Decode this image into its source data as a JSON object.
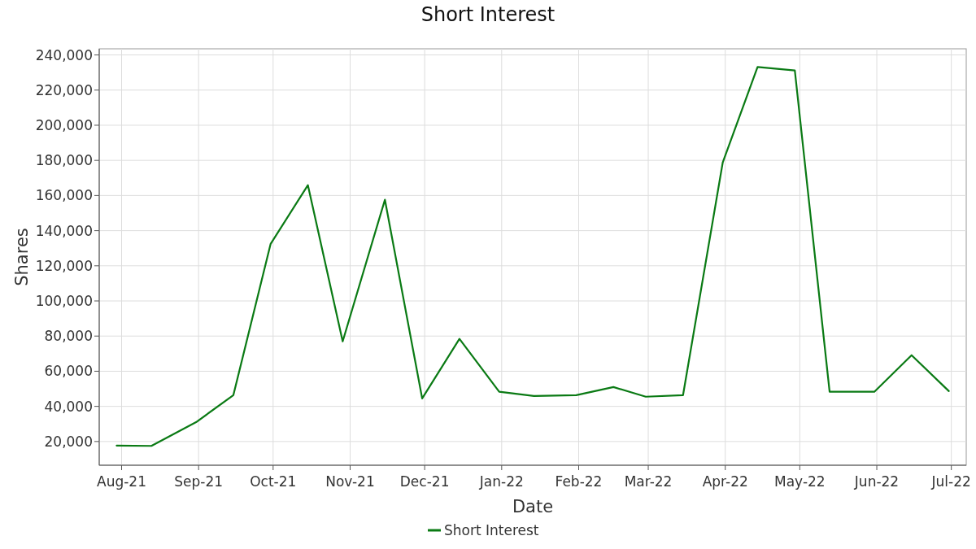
{
  "chart_data": {
    "type": "line",
    "title": "Short Interest",
    "xlabel": "Date",
    "ylabel": "Shares",
    "x": [
      "2021-07-30",
      "2021-08-13",
      "2021-08-31",
      "2021-09-15",
      "2021-09-30",
      "2021-10-15",
      "2021-10-29",
      "2021-11-15",
      "2021-11-30",
      "2021-12-15",
      "2021-12-31",
      "2022-01-14",
      "2022-01-31",
      "2022-02-15",
      "2022-02-28",
      "2022-03-15",
      "2022-03-31",
      "2022-04-14",
      "2022-04-29",
      "2022-05-13",
      "2022-05-31",
      "2022-06-15",
      "2022-06-30"
    ],
    "series": [
      {
        "name": "Short Interest",
        "color": "#0a7a14",
        "values": [
          17700,
          17500,
          31000,
          46400,
          132500,
          165900,
          77000,
          157600,
          44500,
          78400,
          48300,
          45900,
          46400,
          51000,
          45500,
          46400,
          178900,
          233100,
          231200,
          48300,
          48300,
          69100,
          48700
        ]
      }
    ],
    "xlim": [
      "2021-07-23",
      "2022-07-07"
    ],
    "xticks": [
      {
        "value": "2021-08-01",
        "label": "Aug-21"
      },
      {
        "value": "2021-09-01",
        "label": "Sep-21"
      },
      {
        "value": "2021-10-01",
        "label": "Oct-21"
      },
      {
        "value": "2021-11-01",
        "label": "Nov-21"
      },
      {
        "value": "2021-12-01",
        "label": "Dec-21"
      },
      {
        "value": "2022-01-01",
        "label": "Jan-22"
      },
      {
        "value": "2022-02-01",
        "label": "Feb-22"
      },
      {
        "value": "2022-03-01",
        "label": "Mar-22"
      },
      {
        "value": "2022-04-01",
        "label": "Apr-22"
      },
      {
        "value": "2022-05-01",
        "label": "May-22"
      },
      {
        "value": "2022-06-01",
        "label": "Jun-22"
      },
      {
        "value": "2022-07-01",
        "label": "Jul-22"
      }
    ],
    "ylim": [
      6500,
      243500
    ],
    "yticks": [
      {
        "value": 20000,
        "label": "20,000"
      },
      {
        "value": 40000,
        "label": "40,000"
      },
      {
        "value": 60000,
        "label": "60,000"
      },
      {
        "value": 80000,
        "label": "80,000"
      },
      {
        "value": 100000,
        "label": "100,000"
      },
      {
        "value": 120000,
        "label": "120,000"
      },
      {
        "value": 140000,
        "label": "140,000"
      },
      {
        "value": 160000,
        "label": "160,000"
      },
      {
        "value": 180000,
        "label": "180,000"
      },
      {
        "value": 200000,
        "label": "200,000"
      },
      {
        "value": 220000,
        "label": "220,000"
      },
      {
        "value": 240000,
        "label": "240,000"
      }
    ],
    "grid": true,
    "legend": "bottom",
    "marker": "none",
    "line_style": "solid"
  }
}
